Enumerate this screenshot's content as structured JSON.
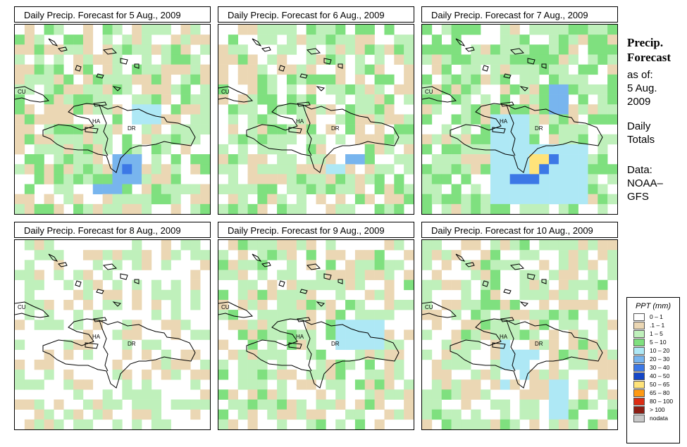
{
  "panels": [
    {
      "title": "Daily Precip. Forecast for  5 Aug., 2009",
      "seed": 11,
      "profile": "p1"
    },
    {
      "title": "Daily Precip. Forecast for  6 Aug., 2009",
      "seed": 23,
      "profile": "p2"
    },
    {
      "title": "Daily Precip. Forecast for  7 Aug., 2009",
      "seed": 37,
      "profile": "p3"
    },
    {
      "title": "Daily Precip. Forecast for  8 Aug., 2009",
      "seed": 41,
      "profile": "p4"
    },
    {
      "title": "Daily Precip. Forecast for  9 Aug., 2009",
      "seed": 53,
      "profile": "p5"
    },
    {
      "title": "Daily Precip. Forecast for  10 Aug., 2009",
      "seed": 67,
      "profile": "p6"
    }
  ],
  "map_labels": {
    "cu": "CU",
    "ha": "HA",
    "dr": "DR"
  },
  "side": {
    "title_line1": "Precip.",
    "title_line2": "Forecast",
    "asof_line1": "as of:",
    "asof_line2": "5 Aug.",
    "asof_line3": "2009",
    "totals_line1": "Daily",
    "totals_line2": "Totals",
    "data_line1": "Data:",
    "data_line2": "NOAA–",
    "data_line3": "GFS"
  },
  "legend": {
    "title": "PPT (mm)",
    "items": [
      {
        "label": "0 – 1",
        "color": "#ffffff"
      },
      {
        "label": ".1 – 1",
        "color": "#ebd7b4"
      },
      {
        "label": "1 – 5",
        "color": "#bff0bb"
      },
      {
        "label": "5 – 10",
        "color": "#7fe07f"
      },
      {
        "label": "10 – 20",
        "color": "#aee8f5"
      },
      {
        "label": "20 – 30",
        "color": "#78b5ee"
      },
      {
        "label": "30 – 40",
        "color": "#3c78e6"
      },
      {
        "label": "40 – 50",
        "color": "#1446c8"
      },
      {
        "label": "50 – 65",
        "color": "#ffe37a"
      },
      {
        "label": "65 – 80",
        "color": "#ff9a14"
      },
      {
        "label": "80 – 100",
        "color": "#dc2d14"
      },
      {
        "label": "> 100",
        "color": "#8c1e14"
      },
      {
        "label": "nodata",
        "color": "#c8c8c8"
      }
    ]
  }
}
